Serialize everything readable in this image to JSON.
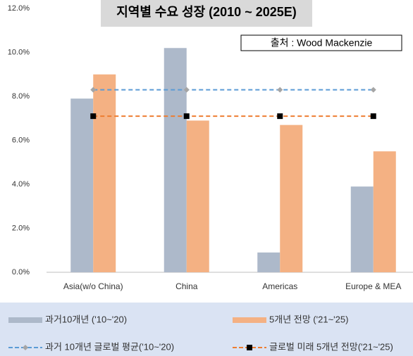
{
  "chart_data": {
    "type": "bar",
    "title": "지역별 수요 성장 (2010 ~ 2025E)",
    "source": "출처 : Wood Mackenzie",
    "categories": [
      "Asia(w/o China)",
      "China",
      "Americas",
      "Europe & MEA"
    ],
    "series": [
      {
        "name": "과거10개년 ('10~'20)",
        "color": "#adb9ca",
        "values": [
          7.9,
          10.2,
          0.9,
          3.9
        ]
      },
      {
        "name": "5개년 전망 ('21~'25)",
        "color": "#f4b183",
        "values": [
          9.0,
          6.9,
          6.7,
          5.5
        ]
      },
      {
        "name": "과거 10개년 글로벌 평균('10~'20)",
        "type": "line",
        "color": "#5b9bd5",
        "values": [
          8.3,
          8.3,
          8.3,
          8.3
        ]
      },
      {
        "name": "글로벌 미래 5개년 전망('21~'25)",
        "type": "line",
        "color": "#ed7d31",
        "values": [
          7.1,
          7.1,
          7.1,
          7.1
        ]
      }
    ],
    "ylim": [
      0,
      12
    ],
    "yticks": [
      {
        "value": 0,
        "label": "0.0%"
      },
      {
        "value": 2,
        "label": "2.0%"
      },
      {
        "value": 4,
        "label": "4.0%"
      },
      {
        "value": 6,
        "label": "6.0%"
      },
      {
        "value": 8,
        "label": "8.0%"
      },
      {
        "value": 10,
        "label": "10.0%"
      },
      {
        "value": 12,
        "label": "12.0%"
      }
    ],
    "grid": false
  }
}
